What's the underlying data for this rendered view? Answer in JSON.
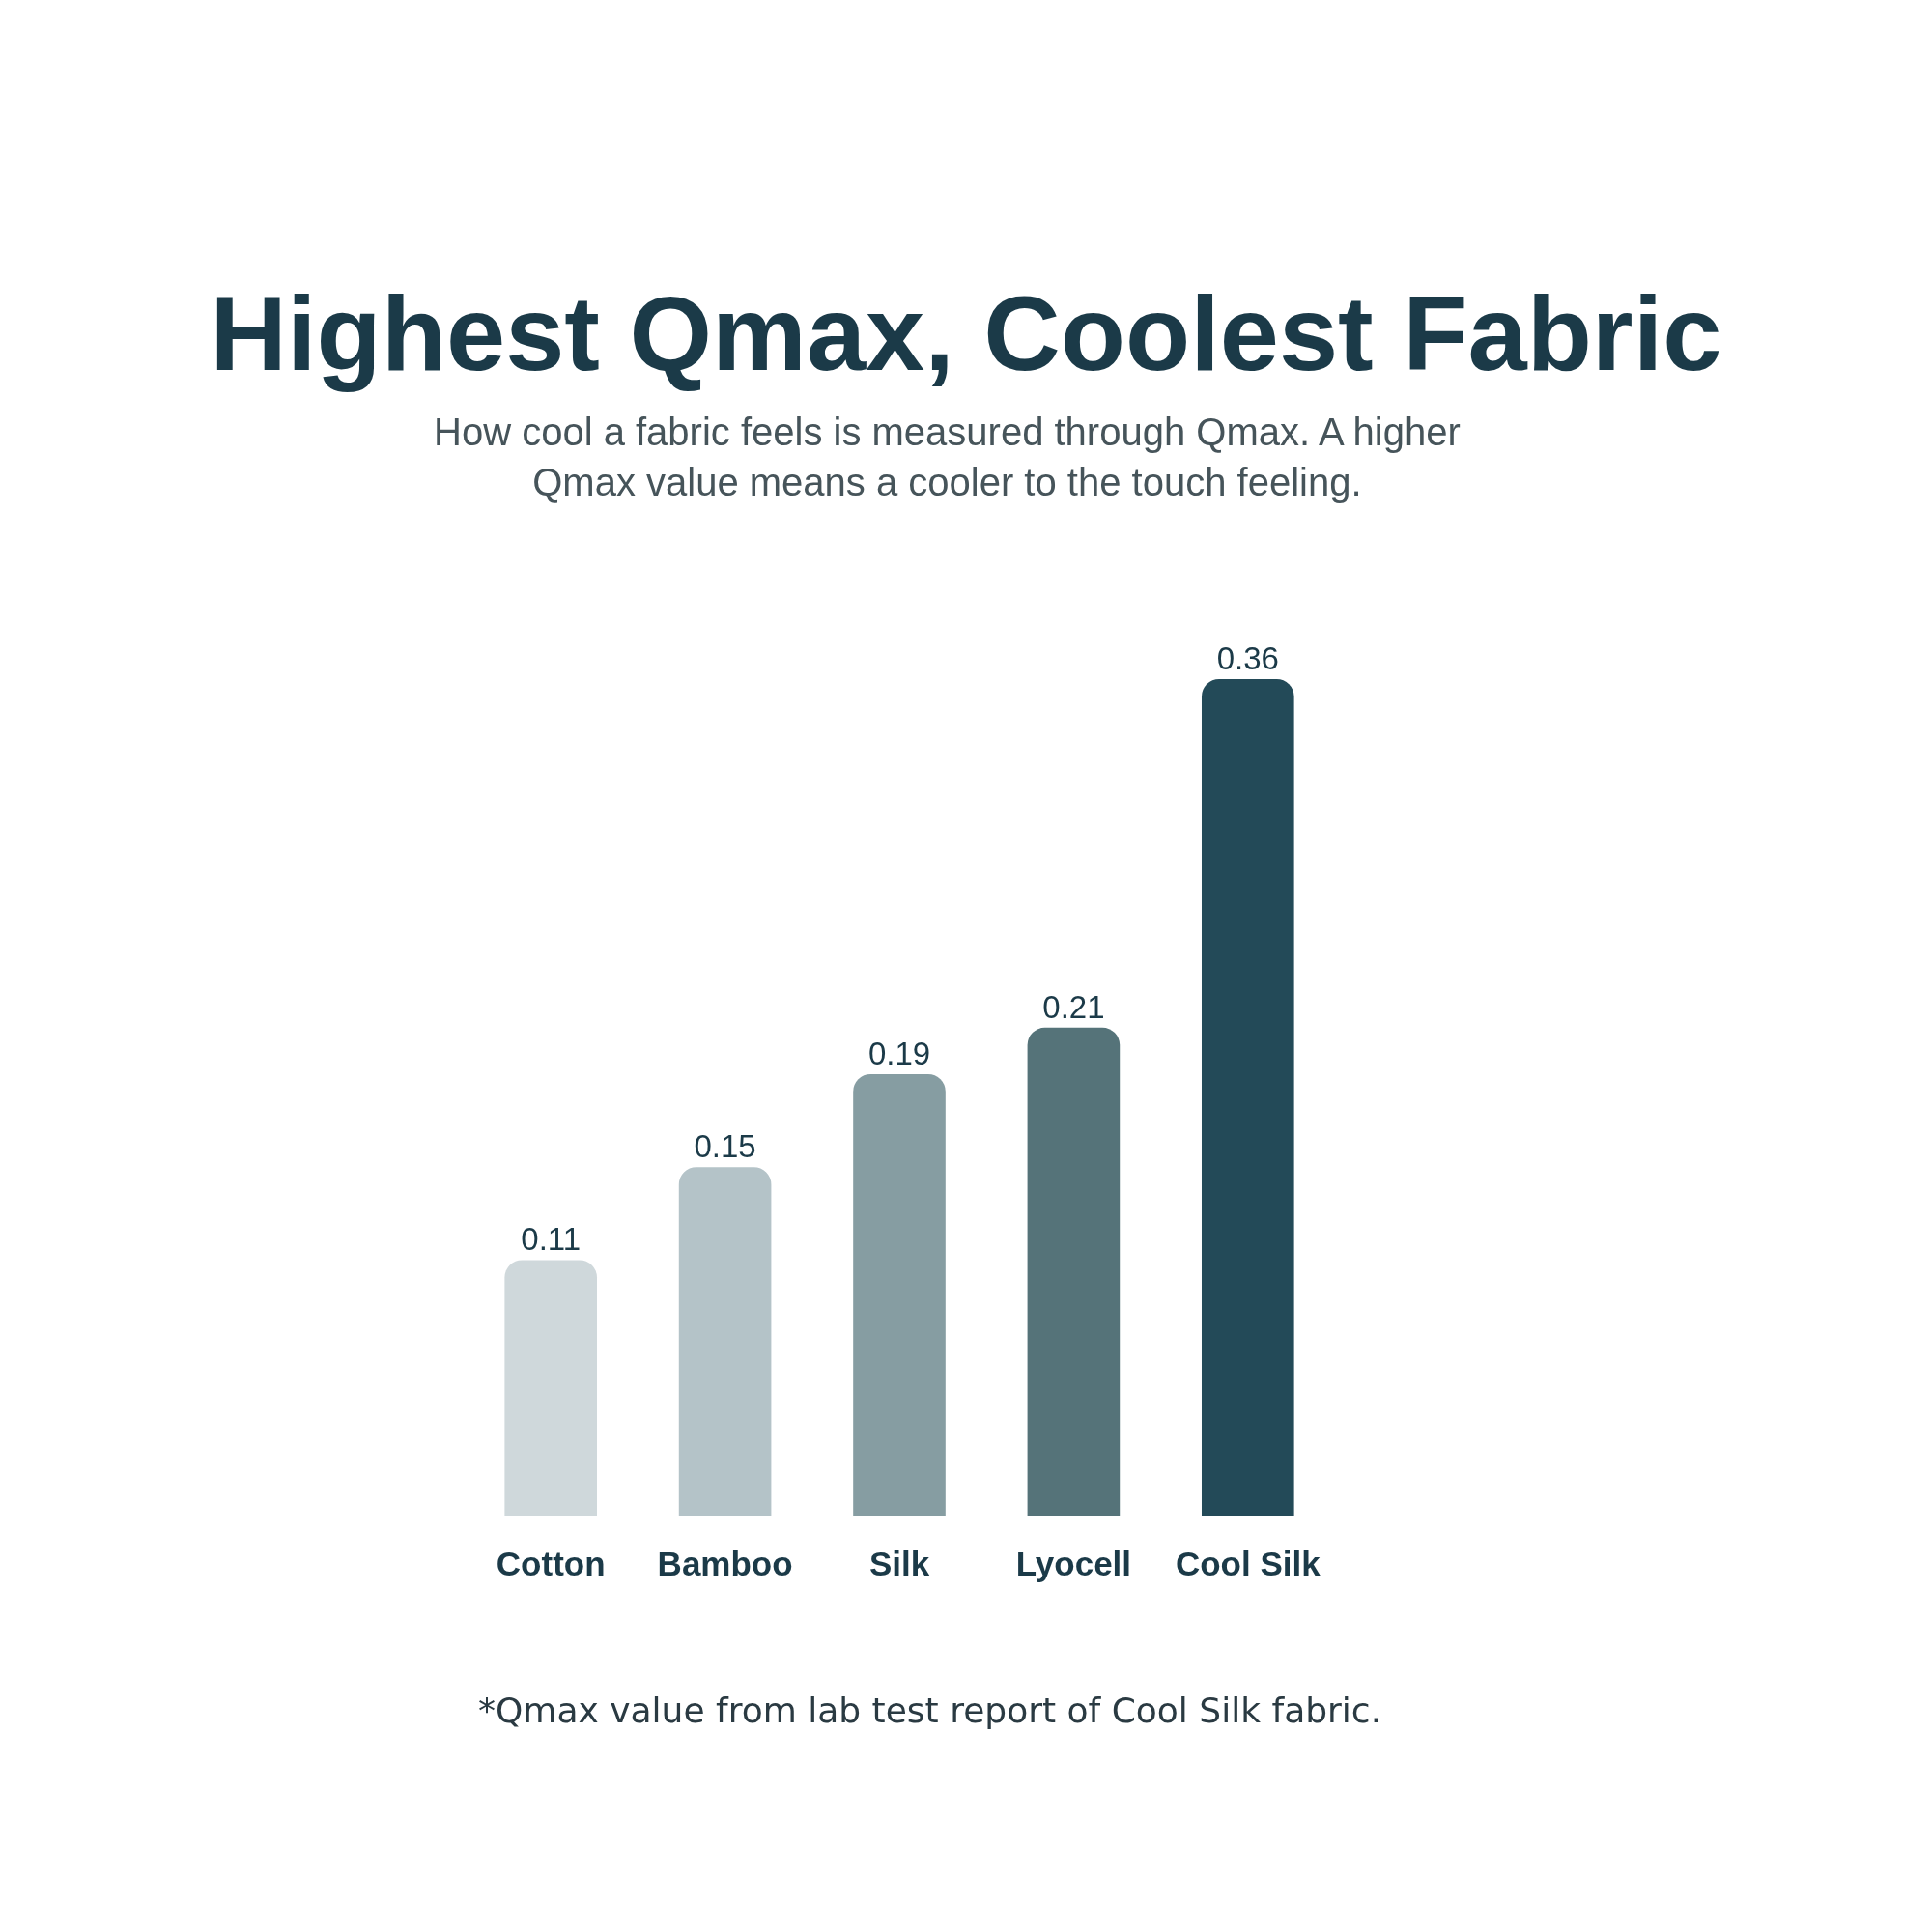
{
  "chart_data": {
    "type": "bar",
    "title": "Highest Qmax, Coolest Fabric",
    "subtitle": "How cool a fabric feels is measured through Qmax. A higher\nQmax value means a cooler to the touch feeling.",
    "categories": [
      "Cotton",
      "Bamboo",
      "Silk",
      "Lyocell",
      "Cool Silk"
    ],
    "values": [
      0.11,
      0.15,
      0.19,
      0.21,
      0.36
    ],
    "colors": [
      "#cfd8db",
      "#b4c3c8",
      "#869da2",
      "#557379",
      "#234a58"
    ],
    "data_labels": true,
    "tick_labels": "x",
    "annotations": [
      "*Qmax value from lab test report of Cool Silk fabric."
    ]
  }
}
